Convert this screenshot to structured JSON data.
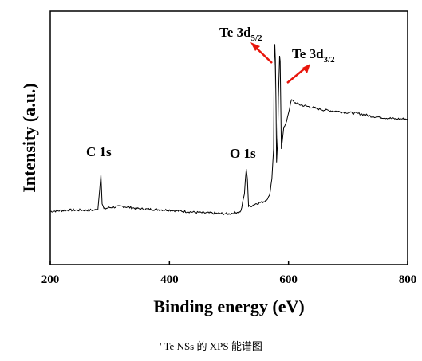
{
  "chart_data": {
    "type": "line",
    "xlabel": "Binding energy (eV)",
    "ylabel": "Intensity (a.u.)",
    "xlim": [
      200,
      800
    ],
    "ylim": [
      0,
      100
    ],
    "x_ticks": [
      200,
      400,
      600,
      800
    ],
    "y_ticks_shown": false,
    "grid": false,
    "legend": "none",
    "series": [
      {
        "x": [
          200,
          230,
          260,
          275,
          280,
          283,
          285,
          287,
          290,
          300,
          320,
          350,
          400,
          450,
          500,
          520,
          526,
          529,
          531,
          533,
          536,
          545,
          560,
          568,
          572,
          575,
          576,
          577,
          578,
          579,
          580,
          582,
          583,
          585,
          586,
          587,
          588,
          589,
          590,
          592,
          595,
          600,
          605,
          610,
          620,
          640,
          660,
          680,
          700,
          720,
          740,
          760,
          780,
          800
        ],
        "y": [
          21,
          21.5,
          21.5,
          21.5,
          22,
          30,
          36,
          24,
          22,
          22.5,
          23,
          22,
          21.5,
          20.5,
          20,
          21,
          28,
          38,
          34,
          23,
          23,
          24,
          25,
          27,
          34,
          46,
          78,
          87,
          81,
          63,
          40,
          50,
          66,
          82,
          80,
          62,
          46,
          48,
          50,
          54,
          55,
          60,
          65,
          64,
          63,
          62,
          61,
          60.5,
          60,
          59.5,
          58.5,
          58,
          57.5,
          57.5
        ]
      }
    ],
    "annotations": [
      {
        "text": "C 1s",
        "x": 285
      },
      {
        "text": "O 1s",
        "x": 531
      },
      {
        "text": "Te 3d",
        "sub": "5/2",
        "x": 577
      },
      {
        "text": "Te 3d",
        "sub": "3/2",
        "x": 585
      }
    ],
    "arrow_color": "#e8160c",
    "line_color": "#000000"
  },
  "caption": "' Te NSs 的 XPS 能谱图"
}
